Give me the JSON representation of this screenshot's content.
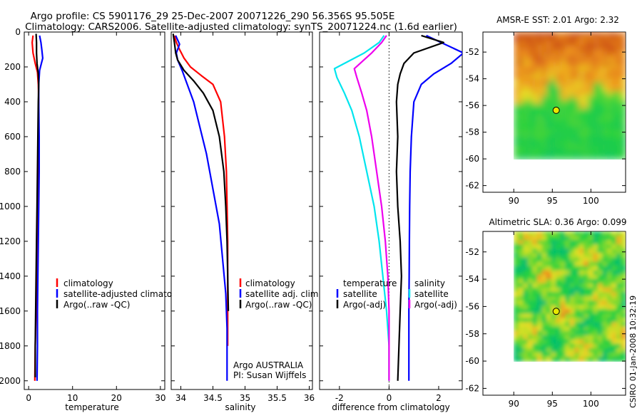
{
  "header": {
    "line1": "Argo profile: CS 5901176_29 25-Dec-2007 20071226_290 56.356S 95.505E",
    "line2": "Climatology: CARS2006. Satellite-adjusted climatology: synTS_20071224.nc (1.6d earlier)"
  },
  "credit": "CSIRO 01-Jan-2008 10:32:19",
  "colors": {
    "red": "#ff0000",
    "blue": "#0000ff",
    "black": "#000000",
    "cyan": "#00e5ee",
    "magenta": "#ee00ee",
    "marker": "#e8e800"
  },
  "chart_data": [
    {
      "type": "line",
      "xlabel": "temperature",
      "ylabel": "",
      "xlim": [
        -1,
        31
      ],
      "ylim": [
        2050,
        0
      ],
      "xticks": [
        0,
        10,
        20,
        30
      ],
      "yticks": [
        0,
        200,
        400,
        600,
        800,
        1000,
        1200,
        1400,
        1600,
        1800,
        2000
      ],
      "legend": [
        "climatology",
        "satellite-adjusted climatology",
        "Argo(..raw -QC)"
      ],
      "series": [
        {
          "name": "climatology",
          "color": "#ff0000",
          "x": [
            1.0,
            0.8,
            1.0,
            1.5,
            2.0,
            2.2,
            2.3,
            2.2,
            2.1,
            2.0,
            1.9,
            1.8,
            1.7,
            1.5,
            1.4
          ],
          "y": [
            20,
            60,
            120,
            180,
            230,
            300,
            400,
            600,
            800,
            1000,
            1200,
            1400,
            1600,
            1800,
            2000
          ]
        },
        {
          "name": "satellite-adjusted climatology",
          "color": "#0000ff",
          "x": [
            2.5,
            2.8,
            3.0,
            3.2,
            2.5,
            2.3,
            2.3,
            2.4,
            2.4,
            2.3,
            2.2,
            2.1,
            2.0,
            2.0,
            1.9
          ],
          "y": [
            20,
            60,
            100,
            150,
            220,
            300,
            400,
            600,
            800,
            1000,
            1200,
            1400,
            1600,
            1800,
            2000
          ]
        },
        {
          "name": "Argo(..raw -QC)",
          "color": "#000000",
          "x": [
            1.7,
            1.8,
            1.8,
            1.9,
            2.2,
            2.3,
            2.2,
            2.1,
            2.0,
            1.9,
            1.8,
            1.7,
            1.6,
            1.5,
            1.5
          ],
          "y": [
            10,
            60,
            120,
            180,
            240,
            300,
            400,
            600,
            800,
            1000,
            1200,
            1400,
            1600,
            1800,
            1980
          ]
        }
      ]
    },
    {
      "type": "line",
      "xlabel": "salinity",
      "ylabel": "",
      "xlim": [
        33.85,
        36.05
      ],
      "ylim": [
        2050,
        0
      ],
      "xticks": [
        34,
        34.5,
        35,
        35.5,
        36
      ],
      "legend": [
        "climatology",
        "satellite adj. clim.",
        "Argo(..raw -QC)"
      ],
      "notes": [
        "Argo AUSTRALIA",
        "PI: Susan Wijffels"
      ],
      "series": [
        {
          "name": "climatology",
          "color": "#ff0000",
          "x": [
            33.9,
            33.93,
            33.98,
            34.05,
            34.15,
            34.32,
            34.5,
            34.62,
            34.68,
            34.71,
            34.72,
            34.73,
            34.73,
            34.73,
            34.73
          ],
          "y": [
            20,
            60,
            100,
            150,
            200,
            250,
            300,
            400,
            600,
            800,
            1000,
            1200,
            1400,
            1600,
            1800
          ]
        },
        {
          "name": "satellite adj. clim.",
          "color": "#0000ff",
          "x": [
            33.92,
            33.98,
            33.93,
            33.95,
            34.02,
            34.1,
            34.2,
            34.3,
            34.4,
            34.5,
            34.6,
            34.65,
            34.7,
            34.72,
            34.72
          ],
          "y": [
            20,
            70,
            120,
            160,
            220,
            300,
            400,
            550,
            700,
            900,
            1100,
            1300,
            1500,
            1700,
            2000
          ]
        },
        {
          "name": "Argo(..raw -QC)",
          "color": "#000000",
          "x": [
            33.88,
            33.9,
            33.92,
            33.95,
            34.05,
            34.2,
            34.35,
            34.5,
            34.6,
            34.67,
            34.7,
            34.72,
            34.73,
            34.74
          ],
          "y": [
            10,
            60,
            120,
            160,
            220,
            280,
            350,
            450,
            600,
            800,
            1000,
            1200,
            1400,
            1600
          ]
        }
      ]
    },
    {
      "type": "line",
      "xlabel": "difference from climatology",
      "ylabel": "",
      "xlim": [
        -2.8,
        2.95
      ],
      "ylim": [
        2050,
        0
      ],
      "xticks": [
        -2,
        0,
        2
      ],
      "legend_left": [
        "temperature",
        "satellite",
        "Argo(-adj)"
      ],
      "legend_right": [
        "salinity",
        "satellite",
        "Argo(-adj)"
      ],
      "series": [
        {
          "name": "satellite",
          "color": "#0000ff",
          "x": [
            1.5,
            2.1,
            3.0,
            2.5,
            1.8,
            1.3,
            1.0,
            0.9,
            0.85,
            0.83,
            0.82,
            0.81,
            0.8,
            0.8,
            0.8
          ],
          "y": [
            20,
            60,
            120,
            180,
            240,
            300,
            400,
            600,
            800,
            1000,
            1200,
            1400,
            1600,
            1800,
            2000
          ]
        },
        {
          "name": "Argo(-adj)",
          "color": "#000000",
          "x": [
            1.3,
            2.2,
            1.0,
            0.6,
            0.45,
            0.35,
            0.3,
            0.35,
            0.3,
            0.35,
            0.45,
            0.5,
            0.45,
            0.4,
            0.35
          ],
          "y": [
            20,
            60,
            120,
            180,
            240,
            300,
            400,
            600,
            800,
            1000,
            1200,
            1400,
            1600,
            1800,
            2000
          ]
        },
        {
          "name": "satellite",
          "color": "#00e5ee",
          "x": [
            -0.2,
            -0.4,
            -1.0,
            -2.2,
            -2.1,
            -1.8,
            -1.5,
            -1.2,
            -0.9,
            -0.6,
            -0.4,
            -0.25,
            -0.1,
            0.0,
            0.0
          ],
          "y": [
            20,
            60,
            120,
            210,
            260,
            350,
            450,
            600,
            800,
            1000,
            1200,
            1400,
            1600,
            1800,
            2000
          ]
        },
        {
          "name": "Argo(-adj)",
          "color": "#ee00ee",
          "x": [
            -0.1,
            -0.3,
            -0.7,
            -1.4,
            -1.3,
            -1.1,
            -0.9,
            -0.7,
            -0.5,
            -0.3,
            -0.15,
            -0.05,
            0.0,
            0.0,
            0.0
          ],
          "y": [
            20,
            60,
            120,
            210,
            260,
            350,
            450,
            600,
            800,
            1000,
            1200,
            1400,
            1600,
            1800,
            2000
          ]
        }
      ]
    },
    {
      "type": "heatmap",
      "title": "AMSR-E SST: 2.01 Argo: 2.32",
      "xlim": [
        86,
        104.5
      ],
      "ylim": [
        -62.5,
        -50.5
      ],
      "xticks": [
        90,
        95,
        100
      ],
      "yticks": [
        -52,
        -54,
        -56,
        -58,
        -60,
        -62
      ],
      "extent": {
        "lon": [
          90,
          104.5
        ],
        "lat": [
          -60,
          -50.5
        ]
      },
      "marker": {
        "lon": 95.5,
        "lat": -56.36
      }
    },
    {
      "type": "heatmap",
      "title": "Altimetric SLA: 0.36 Argo: 0.099",
      "xlim": [
        86,
        104.5
      ],
      "ylim": [
        -62.5,
        -50.5
      ],
      "xticks": [
        90,
        95,
        100
      ],
      "yticks": [
        -52,
        -54,
        -56,
        -58,
        -60,
        -62
      ],
      "extent": {
        "lon": [
          90,
          104.5
        ],
        "lat": [
          -60,
          -50.5
        ]
      },
      "marker": {
        "lon": 95.5,
        "lat": -56.36
      }
    }
  ]
}
